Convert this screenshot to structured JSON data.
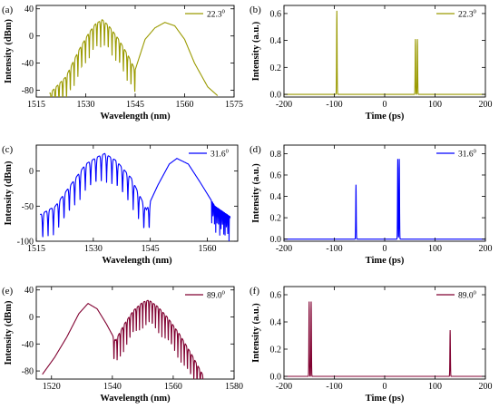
{
  "chart_data": [
    {
      "panel": "(a)",
      "type": "line",
      "xlabel": "Wavelength (nm)",
      "ylabel": "Intensity (dBm)",
      "xlim": [
        1515,
        1575
      ],
      "ylim": [
        -90,
        45
      ],
      "xticks": [
        1515,
        1530,
        1545,
        1560,
        1575
      ],
      "yticks": [
        -80,
        -40,
        0,
        40
      ],
      "legend": "22.3",
      "legend_position": "top-right",
      "color": "#9a9a00",
      "profile": "wl_a",
      "x": [
        1519,
        1524,
        1528,
        1531,
        1533,
        1535,
        1537,
        1540,
        1543,
        1545,
        1548,
        1551,
        1554,
        1557,
        1560,
        1563,
        1567,
        1570
      ],
      "y": [
        -85,
        -60,
        -20,
        5,
        18,
        24,
        15,
        -5,
        -30,
        -50,
        -5,
        12,
        20,
        15,
        -5,
        -40,
        -75,
        -88
      ]
    },
    {
      "panel": "(b)",
      "type": "line",
      "xlabel": "Time (ps)",
      "ylabel": "Intensity (a.u.)",
      "xlim": [
        -200,
        200
      ],
      "ylim": [
        -0.02,
        0.66
      ],
      "xticks": [
        -200,
        -100,
        0,
        100,
        200
      ],
      "yticks": [
        0.0,
        0.2,
        0.4,
        0.6
      ],
      "legend": "22.3",
      "legend_position": "top-right",
      "color": "#9a9a00",
      "peaks": [
        {
          "t": -95,
          "height": 0.62
        },
        {
          "t": 61,
          "height": 0.41
        },
        {
          "t": 65,
          "height": 0.41
        }
      ]
    },
    {
      "panel": "(c)",
      "type": "line",
      "xlabel": "Wavelength (nm)",
      "ylabel": "Intensity (dBm)",
      "xlim": [
        1515,
        1568
      ],
      "ylim": [
        -100,
        37
      ],
      "xticks": [
        1515,
        1530,
        1545,
        1560
      ],
      "yticks": [
        -100,
        -50,
        0
      ],
      "legend": "31.6",
      "legend_position": "top-right",
      "color": "#0000ff",
      "profile": "wl_c",
      "x": [
        1516,
        1520,
        1524,
        1528,
        1531,
        1533,
        1536,
        1540,
        1544,
        1547,
        1550,
        1552,
        1555,
        1558,
        1562,
        1566
      ],
      "y": [
        -62,
        -50,
        -20,
        10,
        20,
        25,
        15,
        -10,
        -55,
        -20,
        10,
        18,
        10,
        -15,
        -50,
        -65
      ]
    },
    {
      "panel": "(d)",
      "type": "line",
      "xlabel": "Time (ps)",
      "ylabel": "Intensity (a.u.)",
      "xlim": [
        -200,
        200
      ],
      "ylim": [
        -0.02,
        0.88
      ],
      "xticks": [
        -200,
        -100,
        0,
        100,
        200
      ],
      "yticks": [
        0.0,
        0.2,
        0.4,
        0.6,
        0.8
      ],
      "legend": "31.6",
      "legend_position": "top-right",
      "color": "#0000ff",
      "peaks": [
        {
          "t": -57,
          "height": 0.51
        },
        {
          "t": 26,
          "height": 0.75
        },
        {
          "t": 29,
          "height": 0.75
        }
      ]
    },
    {
      "panel": "(e)",
      "type": "line",
      "xlabel": "Wavelength (nm)",
      "ylabel": "Intensity (dBm)",
      "xlim": [
        1515,
        1580
      ],
      "ylim": [
        -92,
        45
      ],
      "xticks": [
        1520,
        1540,
        1560,
        1580
      ],
      "yticks": [
        -80,
        -40,
        0,
        40
      ],
      "legend": "89.0",
      "legend_position": "top-right",
      "color": "#800030",
      "profile": "wl_e",
      "x": [
        1517,
        1521,
        1525,
        1529,
        1532,
        1535,
        1538,
        1541,
        1544,
        1547,
        1550,
        1552,
        1555,
        1558,
        1562,
        1566,
        1570
      ],
      "y": [
        -85,
        -60,
        -30,
        5,
        20,
        12,
        -10,
        -35,
        -10,
        10,
        22,
        25,
        15,
        0,
        -25,
        -55,
        -88
      ]
    },
    {
      "panel": "(f)",
      "type": "line",
      "xlabel": "Time (ps)",
      "ylabel": "Intensity (a.u.)",
      "xlim": [
        -200,
        200
      ],
      "ylim": [
        -0.02,
        0.66
      ],
      "xticks": [
        -200,
        -100,
        0,
        100,
        200
      ],
      "yticks": [
        0.0,
        0.2,
        0.4,
        0.6
      ],
      "legend": "89.0",
      "legend_position": "top-right",
      "color": "#800030",
      "peaks": [
        {
          "t": -150,
          "height": 0.55
        },
        {
          "t": -146,
          "height": 0.55
        },
        {
          "t": 130,
          "height": 0.34
        }
      ]
    }
  ]
}
